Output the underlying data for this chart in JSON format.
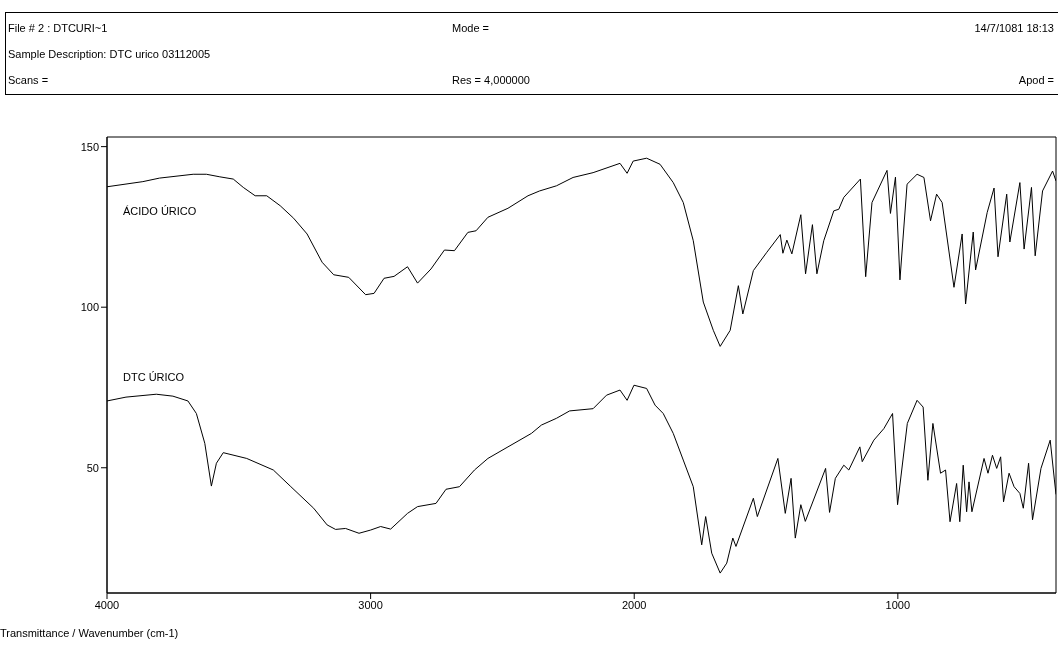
{
  "chart_data": {
    "type": "line",
    "xlabel": "Transmittance / Wavenumber (cm-1)",
    "annotations": [
      "File # 2 : DTCURI~1",
      "Mode =",
      "14/7/1081 18:13",
      "Sample Description: DTC urico 03112005",
      "Scans =",
      "Res = 4,000000",
      "Apod ="
    ],
    "xlim": [
      4000,
      400
    ],
    "ylim": [
      11,
      153
    ],
    "xticks": [
      4000,
      3000,
      2000,
      1000
    ],
    "yticks": [
      50,
      100,
      150
    ],
    "marker": "none",
    "line_style": "solid",
    "series": [
      {
        "name": "ÁCIDO ÚRICO",
        "color": "#000000",
        "x": [
          4000,
          3864,
          3801,
          3673,
          3623,
          3572,
          3521,
          3483,
          3438,
          3394,
          3343,
          3292,
          3241,
          3184,
          3140,
          3083,
          3019,
          2987,
          2949,
          2911,
          2860,
          2822,
          2771,
          2720,
          2682,
          2631,
          2600,
          2555,
          2479,
          2403,
          2359,
          2295,
          2232,
          2156,
          2054,
          2027,
          2004,
          1953,
          1902,
          1852,
          1814,
          1776,
          1738,
          1700,
          1674,
          1636,
          1605,
          1588,
          1548,
          1497,
          1446,
          1436,
          1421,
          1402,
          1368,
          1350,
          1324,
          1307,
          1281,
          1243,
          1224,
          1205,
          1142,
          1122,
          1098,
          1041,
          1028,
          1009,
          992,
          965,
          927,
          901,
          876,
          853,
          832,
          787,
          756,
          743,
          714,
          705,
          661,
          635,
          620,
          587,
          575,
          537,
          521,
          493,
          479,
          451,
          413,
          400
        ],
        "values": [
          137.5,
          139.1,
          140.2,
          141.4,
          141.4,
          140.6,
          139.9,
          137.3,
          134.7,
          134.7,
          131.6,
          127.7,
          122.8,
          114.0,
          110.1,
          109.3,
          103.9,
          104.3,
          109.0,
          109.6,
          112.6,
          107.5,
          111.9,
          117.8,
          117.6,
          123.3,
          123.8,
          128.0,
          130.8,
          134.7,
          136.2,
          137.8,
          140.4,
          141.9,
          144.8,
          141.7,
          145.5,
          146.4,
          144.5,
          138.8,
          132.6,
          120.7,
          101.6,
          92.8,
          87.8,
          92.8,
          106.7,
          97.9,
          111.4,
          117.1,
          122.6,
          116.8,
          120.9,
          116.6,
          128.8,
          110.4,
          125.7,
          110.4,
          120.7,
          130.0,
          130.5,
          134.2,
          139.9,
          109.5,
          132.6,
          142.6,
          129.2,
          140.5,
          108.5,
          138.3,
          141.4,
          140.4,
          126.9,
          135.2,
          132.6,
          106.2,
          122.8,
          101.0,
          123.4,
          111.6,
          129.5,
          137.1,
          115.7,
          135.2,
          120.3,
          138.8,
          118.1,
          137.3,
          116.0,
          136.2,
          142.4,
          139.3
        ]
      },
      {
        "name": "DTC ÚRICO",
        "color": "#000000",
        "x": [
          4000,
          3928,
          3813,
          3750,
          3693,
          3661,
          3629,
          3604,
          3585,
          3559,
          3470,
          3369,
          3305,
          3216,
          3165,
          3133,
          3095,
          3044,
          3000,
          2962,
          2924,
          2860,
          2822,
          2752,
          2714,
          2663,
          2606,
          2555,
          2479,
          2390,
          2352,
          2295,
          2245,
          2156,
          2105,
          2054,
          2027,
          2001,
          1953,
          1921,
          1890,
          1852,
          1814,
          1776,
          1744,
          1729,
          1706,
          1674,
          1649,
          1626,
          1614,
          1548,
          1533,
          1455,
          1427,
          1405,
          1389,
          1368,
          1351,
          1274,
          1259,
          1237,
          1205,
          1186,
          1144,
          1135,
          1091,
          1053,
          1020,
          1001,
          964,
          927,
          904,
          886,
          867,
          838,
          819,
          802,
          777,
          765,
          752,
          739,
          730,
          719,
          673,
          658,
          641,
          625,
          610,
          599,
          578,
          559,
          537,
          524,
          504,
          489,
          457,
          422,
          406,
          400
        ],
        "values": [
          70.8,
          72.0,
          72.9,
          72.3,
          70.8,
          66.9,
          57.6,
          44.3,
          51.4,
          54.7,
          52.9,
          49.3,
          44.3,
          37.4,
          32.2,
          30.8,
          31.1,
          29.6,
          30.6,
          31.7,
          30.9,
          35.8,
          37.9,
          38.9,
          43.3,
          44.1,
          49.3,
          52.9,
          56.5,
          60.7,
          63.3,
          65.4,
          67.7,
          68.4,
          72.6,
          74.2,
          71.0,
          75.7,
          74.7,
          69.5,
          66.9,
          60.7,
          52.4,
          44.1,
          26.0,
          34.8,
          23.4,
          17.2,
          20.3,
          28.1,
          25.5,
          40.5,
          34.8,
          52.9,
          35.8,
          46.7,
          28.1,
          38.5,
          33.3,
          49.8,
          36.1,
          46.7,
          50.8,
          49.3,
          56.5,
          51.9,
          58.6,
          62.2,
          66.9,
          38.5,
          63.8,
          71.0,
          68.9,
          46.1,
          63.8,
          48.3,
          49.3,
          33.2,
          45.1,
          33.2,
          50.8,
          36.3,
          45.6,
          36.3,
          52.9,
          48.3,
          53.9,
          49.8,
          53.4,
          39.4,
          48.3,
          44.1,
          42.0,
          37.4,
          51.4,
          33.8,
          49.8,
          58.6,
          46.2,
          41.7
        ]
      }
    ]
  }
}
